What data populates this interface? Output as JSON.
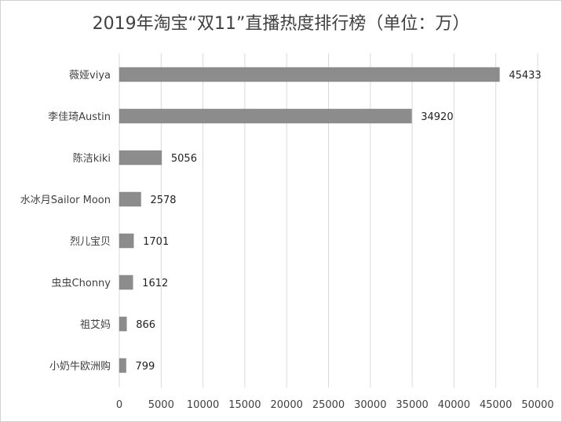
{
  "chart_data": {
    "type": "bar",
    "orientation": "horizontal",
    "title": "2019年淘宝“双11”直播热度排行榜（单位：万）",
    "categories": [
      "薇娅viya",
      "李佳琦Austin",
      "陈洁kiki",
      "水冰月Sailor Moon",
      "烈儿宝贝",
      "虫虫Chonny",
      "祖艾妈",
      "小奶牛欧洲购"
    ],
    "values": [
      45433,
      34920,
      5056,
      2578,
      1701,
      1612,
      866,
      799
    ],
    "xlim": [
      0,
      50000
    ],
    "x_ticks": [
      0,
      5000,
      10000,
      15000,
      20000,
      25000,
      30000,
      35000,
      40000,
      45000,
      50000
    ],
    "grid": true,
    "bar_color": "#8c8c8c",
    "data_labels": true
  }
}
